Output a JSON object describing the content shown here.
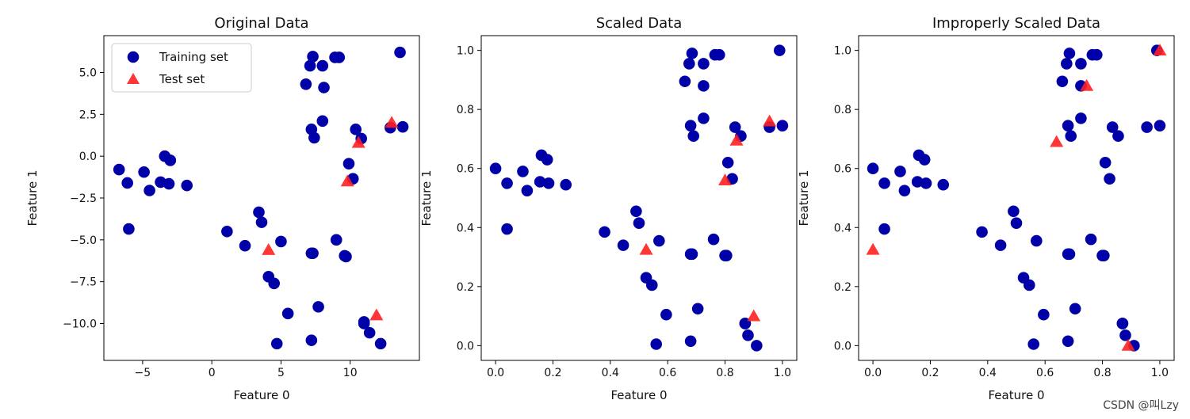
{
  "watermark": "CSDN @叫Lzy",
  "legend": {
    "entries": [
      {
        "label": "Training set",
        "marker": "circle",
        "color": "#0000a8"
      },
      {
        "label": "Test set",
        "marker": "triangle",
        "color": "#ff2020"
      }
    ]
  },
  "colors": {
    "train": "#0000a8",
    "test": "#ff2020"
  },
  "chart_data": [
    {
      "type": "scatter",
      "title": "Original Data",
      "xlabel": "Feature 0",
      "ylabel": "Feature 1",
      "xlim": [
        -7.8,
        15.0
      ],
      "ylim": [
        -12.2,
        7.2
      ],
      "xticks": [
        -5,
        0,
        5,
        10
      ],
      "xtick_labels": [
        "−5",
        "0",
        "5",
        "10"
      ],
      "yticks": [
        5.0,
        2.5,
        0.0,
        -2.5,
        -5.0,
        -7.5,
        -10.0
      ],
      "ytick_labels": [
        "5.0",
        "2.5",
        "0.0",
        "−2.5",
        "−5.0",
        "−7.5",
        "−10.0"
      ],
      "legend_position": "top-left",
      "series": [
        {
          "name": "Training set",
          "marker": "circle",
          "x": [
            -6.7,
            -6.1,
            -4.9,
            -4.5,
            -3.7,
            -3.4,
            -3.1,
            -3.0,
            -1.8,
            -6.0,
            1.1,
            2.4,
            3.4,
            3.6,
            4.1,
            4.5,
            5.0,
            5.5,
            4.7,
            7.3,
            7.2,
            7.2,
            7.4,
            7.7,
            8.0,
            8.1,
            8.0,
            6.8,
            7.1,
            7.3,
            8.9,
            9.2,
            9.6,
            9.9,
            10.2,
            10.4,
            10.8,
            11.0,
            11.4,
            12.2,
            12.9,
            13.6,
            13.8,
            7.2,
            9.0,
            9.7,
            11.0
          ],
          "y": [
            -0.8,
            -1.6,
            -0.95,
            -2.05,
            -1.55,
            0.0,
            -1.65,
            -0.25,
            -1.75,
            -4.35,
            -4.5,
            -5.35,
            -3.35,
            -3.95,
            -7.2,
            -7.6,
            -5.1,
            -9.4,
            -11.2,
            -5.8,
            -11.0,
            1.6,
            1.1,
            -9.0,
            5.4,
            4.1,
            2.1,
            4.3,
            5.4,
            5.95,
            5.9,
            5.9,
            -5.95,
            -0.45,
            -1.35,
            1.6,
            1.05,
            -9.9,
            -10.55,
            -11.2,
            1.7,
            6.2,
            1.75,
            -5.8,
            -5.0,
            -6.0,
            -10.0
          ]
        },
        {
          "name": "Test set",
          "marker": "triangle",
          "x": [
            4.1,
            9.8,
            10.6,
            11.9,
            13.0
          ],
          "y": [
            -5.6,
            -1.5,
            0.8,
            -9.5,
            2.0
          ]
        }
      ]
    },
    {
      "type": "scatter",
      "title": "Scaled Data",
      "xlabel": "Feature 0",
      "ylabel": "Feature 1",
      "xlim": [
        -0.05,
        1.05
      ],
      "ylim": [
        -0.05,
        1.05
      ],
      "xticks": [
        0.0,
        0.2,
        0.4,
        0.6,
        0.8,
        1.0
      ],
      "xtick_labels": [
        "0.0",
        "0.2",
        "0.4",
        "0.6",
        "0.8",
        "1.0"
      ],
      "yticks": [
        1.0,
        0.8,
        0.6,
        0.4,
        0.2,
        0.0
      ],
      "ytick_labels": [
        "1.0",
        "0.8",
        "0.6",
        "0.4",
        "0.2",
        "0.0"
      ],
      "series": [
        {
          "name": "Training set",
          "marker": "circle",
          "x": [
            0.0,
            0.04,
            0.095,
            0.11,
            0.155,
            0.16,
            0.185,
            0.18,
            0.245,
            0.04,
            0.38,
            0.445,
            0.49,
            0.5,
            0.525,
            0.545,
            0.57,
            0.595,
            0.56,
            0.685,
            0.68,
            0.68,
            0.69,
            0.705,
            0.725,
            0.725,
            0.725,
            0.66,
            0.675,
            0.685,
            0.765,
            0.78,
            0.8,
            0.81,
            0.825,
            0.835,
            0.855,
            0.87,
            0.88,
            0.91,
            0.955,
            0.99,
            1.0,
            0.68,
            0.76,
            0.805,
            0.87
          ],
          "y": [
            0.6,
            0.55,
            0.59,
            0.525,
            0.555,
            0.645,
            0.55,
            0.63,
            0.545,
            0.395,
            0.385,
            0.34,
            0.455,
            0.415,
            0.23,
            0.205,
            0.355,
            0.105,
            0.005,
            0.31,
            0.015,
            0.745,
            0.71,
            0.125,
            0.955,
            0.88,
            0.77,
            0.895,
            0.955,
            0.99,
            0.985,
            0.985,
            0.305,
            0.62,
            0.565,
            0.74,
            0.71,
            0.075,
            0.035,
            0.0,
            0.74,
            1.0,
            0.745,
            0.31,
            0.36,
            0.305,
            0.075
          ]
        },
        {
          "name": "Test set",
          "marker": "triangle",
          "x": [
            0.525,
            0.8,
            0.84,
            0.9,
            0.955
          ],
          "y": [
            0.325,
            0.56,
            0.695,
            0.1,
            0.76
          ]
        }
      ]
    },
    {
      "type": "scatter",
      "title": "Improperly Scaled Data",
      "xlabel": "Feature 0",
      "ylabel": "Feature 1",
      "xlim": [
        -0.05,
        1.05
      ],
      "ylim": [
        -0.05,
        1.05
      ],
      "xticks": [
        0.0,
        0.2,
        0.4,
        0.6,
        0.8,
        1.0
      ],
      "xtick_labels": [
        "0.0",
        "0.2",
        "0.4",
        "0.6",
        "0.8",
        "1.0"
      ],
      "yticks": [
        1.0,
        0.8,
        0.6,
        0.4,
        0.2,
        0.0
      ],
      "ytick_labels": [
        "1.0",
        "0.8",
        "0.6",
        "0.4",
        "0.2",
        "0.0"
      ],
      "series": [
        {
          "name": "Training set",
          "marker": "circle",
          "x": [
            0.0,
            0.04,
            0.095,
            0.11,
            0.155,
            0.16,
            0.185,
            0.18,
            0.245,
            0.04,
            0.38,
            0.445,
            0.49,
            0.5,
            0.525,
            0.545,
            0.57,
            0.595,
            0.56,
            0.685,
            0.68,
            0.68,
            0.69,
            0.705,
            0.725,
            0.725,
            0.725,
            0.66,
            0.675,
            0.685,
            0.765,
            0.78,
            0.8,
            0.81,
            0.825,
            0.835,
            0.855,
            0.87,
            0.88,
            0.91,
            0.955,
            0.99,
            1.0,
            0.68,
            0.76,
            0.805,
            0.87
          ],
          "y": [
            0.6,
            0.55,
            0.59,
            0.525,
            0.555,
            0.645,
            0.55,
            0.63,
            0.545,
            0.395,
            0.385,
            0.34,
            0.455,
            0.415,
            0.23,
            0.205,
            0.355,
            0.105,
            0.005,
            0.31,
            0.015,
            0.745,
            0.71,
            0.125,
            0.955,
            0.88,
            0.77,
            0.895,
            0.955,
            0.99,
            0.985,
            0.985,
            0.305,
            0.62,
            0.565,
            0.74,
            0.71,
            0.075,
            0.035,
            0.0,
            0.74,
            1.0,
            0.745,
            0.31,
            0.36,
            0.305,
            0.075
          ]
        },
        {
          "name": "Test set",
          "marker": "triangle",
          "x": [
            0.0,
            0.64,
            0.745,
            0.89,
            1.0
          ],
          "y": [
            0.325,
            0.69,
            0.88,
            0.0,
            1.0
          ]
        }
      ]
    }
  ]
}
